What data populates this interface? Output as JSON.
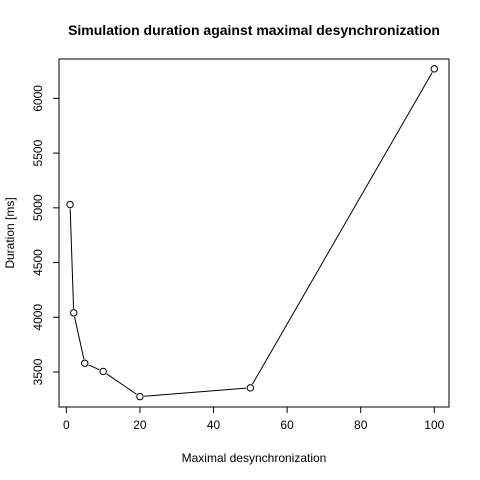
{
  "chart_data": {
    "type": "line",
    "title": "Simulation duration against maximal desynchronization",
    "xlabel": "Maximal desynchronization",
    "ylabel": "Duration [ms]",
    "xlim": [
      -2,
      104
    ],
    "ylim": [
      3180,
      6360
    ],
    "x_ticks": [
      0,
      20,
      40,
      60,
      80,
      100
    ],
    "y_ticks": [
      3500,
      4000,
      4500,
      5000,
      5500,
      6000
    ],
    "grid": false,
    "legend": "none",
    "markers": "open-circle",
    "series": [
      {
        "x": [
          1,
          2,
          5,
          10,
          20,
          50,
          100
        ],
        "y": [
          5030,
          4040,
          3580,
          3505,
          3275,
          3355,
          6270
        ]
      }
    ]
  }
}
